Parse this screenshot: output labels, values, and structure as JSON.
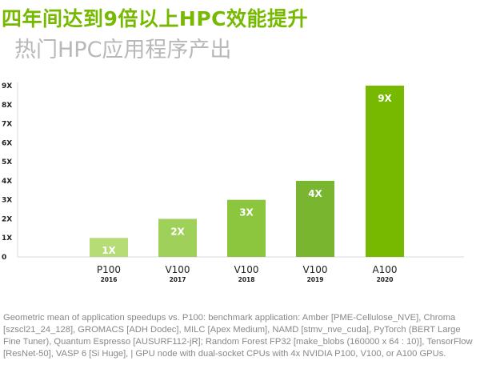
{
  "header": {
    "title": "四年间达到9倍以上HPC效能提升",
    "subtitle": "热门HPC应用程序产出"
  },
  "colors": {
    "title": "#76b900",
    "subtitle": "#b8b8b8",
    "bars": [
      "#b6dc76",
      "#9fd15a",
      "#8cc63f",
      "#79b52f",
      "#76b900"
    ],
    "bar_label": "#ffffff",
    "axis_text": "#222222",
    "gridline": "#d9d9d9",
    "footnote": "#888888"
  },
  "chart_data": {
    "type": "bar",
    "categories": [
      "P100",
      "V100",
      "V100",
      "V100",
      "A100"
    ],
    "years": [
      "2016",
      "2017",
      "2018",
      "2019",
      "2020"
    ],
    "values": [
      1,
      2,
      3,
      4,
      9
    ],
    "data_labels": [
      "1X",
      "2X",
      "3X",
      "4X",
      "9X"
    ],
    "yticks": [
      "0",
      "1X",
      "2X",
      "3X",
      "4X",
      "5X",
      "6X",
      "7X",
      "8X",
      "9X"
    ],
    "ylim": [
      0,
      9
    ],
    "grid": false
  },
  "footnote": "Geometric mean of application speedups vs. P100: benchmark application: Amber [PME-Cellulose_NVE], Chroma [szscl21_24_128], GROMACS [ADH Dodec], MILC [Apex Medium], NAMD [stmv_nve_cuda], PyTorch (BERT Large Fine Tuner), Quantum Espresso [AUSURF112-jR]; Random Forest FP32 [make_blobs (160000 x 64 : 10)], TensorFlow [ResNet-50], VASP 6 [Si Huge], | GPU node with dual-socket CPUs with 4x NVIDIA P100, V100, or A100 GPUs."
}
